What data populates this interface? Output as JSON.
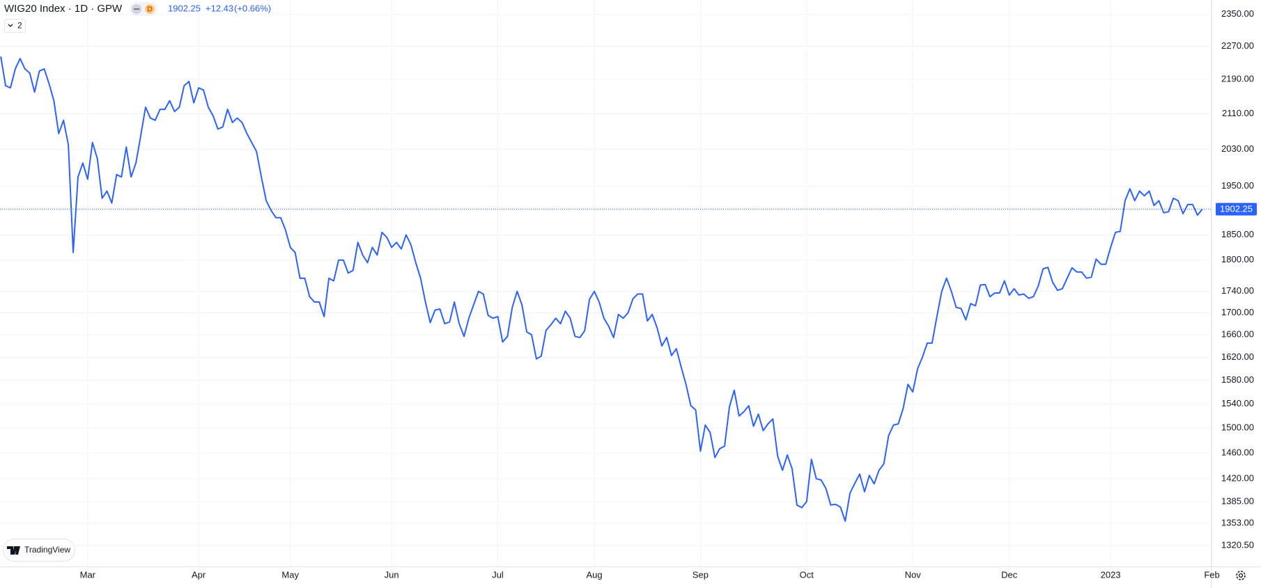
{
  "header": {
    "title": "WIG20 Index · 1D · GPW",
    "badge": "D",
    "price": "1902.25",
    "change": "+12.43",
    "change_pct": "(+0.66%)",
    "layers": "2"
  },
  "logo": "TradingView",
  "chart_data": {
    "type": "line",
    "log_scale": true,
    "grid": true,
    "categories": [
      null,
      null,
      null,
      null,
      null,
      null,
      null,
      null,
      null,
      null,
      null,
      null,
      null,
      null,
      null,
      null,
      null,
      null,
      "Mar",
      null,
      null,
      null,
      null,
      null,
      null,
      null,
      null,
      null,
      null,
      null,
      null,
      null,
      null,
      null,
      null,
      null,
      null,
      null,
      null,
      null,
      null,
      "Apr",
      null,
      null,
      null,
      null,
      null,
      null,
      null,
      null,
      null,
      null,
      null,
      null,
      null,
      null,
      null,
      null,
      null,
      null,
      "May",
      null,
      null,
      null,
      null,
      null,
      null,
      null,
      null,
      null,
      null,
      null,
      null,
      null,
      null,
      null,
      null,
      null,
      null,
      null,
      null,
      "Jun",
      null,
      null,
      null,
      null,
      null,
      null,
      null,
      null,
      null,
      null,
      null,
      null,
      null,
      null,
      null,
      null,
      null,
      null,
      null,
      null,
      null,
      "Jul",
      null,
      null,
      null,
      null,
      null,
      null,
      null,
      null,
      null,
      null,
      null,
      null,
      null,
      null,
      null,
      null,
      null,
      null,
      null,
      "Aug",
      null,
      null,
      null,
      null,
      null,
      null,
      null,
      null,
      null,
      null,
      null,
      null,
      null,
      null,
      null,
      null,
      null,
      null,
      null,
      null,
      null,
      "Sep",
      null,
      null,
      null,
      null,
      null,
      null,
      null,
      null,
      null,
      null,
      null,
      null,
      null,
      null,
      null,
      null,
      null,
      null,
      null,
      null,
      null,
      "Oct",
      null,
      null,
      null,
      null,
      null,
      null,
      null,
      null,
      null,
      null,
      null,
      null,
      null,
      null,
      null,
      null,
      null,
      null,
      null,
      null,
      null,
      "Nov",
      null,
      null,
      null,
      null,
      null,
      null,
      null,
      null,
      null,
      null,
      null,
      null,
      null,
      null,
      null,
      null,
      null,
      null,
      null,
      "Dec",
      null,
      null,
      null,
      null,
      null,
      null,
      null,
      null,
      null,
      null,
      null,
      null,
      null,
      null,
      null,
      null,
      null,
      null,
      null,
      null,
      "2023",
      null,
      null,
      null,
      null,
      null,
      null,
      null,
      null,
      null,
      null,
      null,
      null,
      null,
      null,
      null,
      null,
      null,
      null,
      null,
      null,
      "Feb"
    ],
    "series": [
      {
        "name": "WIG20 Index",
        "color": "#2962ff",
        "values": [
          2245,
          2175,
          2170,
          2215,
          2240,
          2215,
          2205,
          2160,
          2210,
          2215,
          2180,
          2140,
          2065,
          2095,
          2040,
          1815,
          1970,
          2000,
          1965,
          2045,
          2010,
          1925,
          1940,
          1915,
          1975,
          1970,
          2035,
          1970,
          2000,
          2060,
          2125,
          2100,
          2095,
          2120,
          2120,
          2140,
          2115,
          2125,
          2175,
          2185,
          2135,
          2170,
          2165,
          2125,
          2105,
          2075,
          2080,
          2120,
          2090,
          2100,
          2090,
          2065,
          2045,
          2025,
          1970,
          1920,
          1900,
          1885,
          1885,
          1860,
          1825,
          1815,
          1765,
          1765,
          1730,
          1720,
          1720,
          1693,
          1765,
          1760,
          1800,
          1800,
          1775,
          1780,
          1835,
          1810,
          1795,
          1825,
          1810,
          1855,
          1845,
          1825,
          1835,
          1822,
          1850,
          1830,
          1795,
          1765,
          1720,
          1682,
          1705,
          1707,
          1680,
          1683,
          1720,
          1680,
          1657,
          1690,
          1715,
          1740,
          1735,
          1695,
          1690,
          1693,
          1647,
          1657,
          1710,
          1740,
          1715,
          1665,
          1660,
          1617,
          1622,
          1668,
          1678,
          1690,
          1680,
          1703,
          1690,
          1657,
          1655,
          1667,
          1725,
          1740,
          1720,
          1690,
          1675,
          1655,
          1697,
          1690,
          1700,
          1726,
          1735,
          1735,
          1685,
          1697,
          1673,
          1640,
          1655,
          1623,
          1635,
          1603,
          1573,
          1537,
          1530,
          1463,
          1505,
          1493,
          1453,
          1467,
          1471,
          1535,
          1563,
          1520,
          1527,
          1537,
          1503,
          1523,
          1496,
          1507,
          1515,
          1455,
          1433,
          1457,
          1435,
          1380,
          1376,
          1385,
          1450,
          1420,
          1418,
          1405,
          1380,
          1381,
          1377,
          1356,
          1398,
          1413,
          1427,
          1400,
          1425,
          1412,
          1433,
          1443,
          1488,
          1505,
          1507,
          1532,
          1573,
          1560,
          1600,
          1620,
          1645,
          1645,
          1693,
          1740,
          1765,
          1740,
          1710,
          1708,
          1687,
          1717,
          1713,
          1752,
          1753,
          1730,
          1737,
          1737,
          1760,
          1733,
          1745,
          1733,
          1735,
          1727,
          1730,
          1750,
          1783,
          1786,
          1757,
          1742,
          1745,
          1765,
          1785,
          1777,
          1777,
          1765,
          1767,
          1802,
          1792,
          1792,
          1825,
          1855,
          1857,
          1920,
          1945,
          1920,
          1940,
          1930,
          1940,
          1910,
          1920,
          1895,
          1897,
          1925,
          1920,
          1893,
          1912,
          1912,
          1890,
          1902.25,
          null,
          null
        ]
      }
    ],
    "ylim": [
      1291,
      2387
    ],
    "yticks": [
      {
        "value": 2350,
        "label": "2350.00"
      },
      {
        "value": 2270,
        "label": "2270.00"
      },
      {
        "value": 2190,
        "label": "2190.00"
      },
      {
        "value": 2110,
        "label": "2110.00"
      },
      {
        "value": 2030,
        "label": "2030.00"
      },
      {
        "value": 1950,
        "label": "1950.00"
      },
      {
        "value": 1850,
        "label": "1850.00"
      },
      {
        "value": 1800,
        "label": "1800.00"
      },
      {
        "value": 1740,
        "label": "1740.00"
      },
      {
        "value": 1700,
        "label": "1700.00"
      },
      {
        "value": 1660,
        "label": "1660.00"
      },
      {
        "value": 1620,
        "label": "1620.00"
      },
      {
        "value": 1580,
        "label": "1580.00"
      },
      {
        "value": 1540,
        "label": "1540.00"
      },
      {
        "value": 1500,
        "label": "1500.00"
      },
      {
        "value": 1460,
        "label": "1460.00"
      },
      {
        "value": 1420,
        "label": "1420.00"
      },
      {
        "value": 1385,
        "label": "1385.00"
      },
      {
        "value": 1353,
        "label": "1353.00"
      },
      {
        "value": 1320.5,
        "label": "1320.50"
      }
    ]
  }
}
